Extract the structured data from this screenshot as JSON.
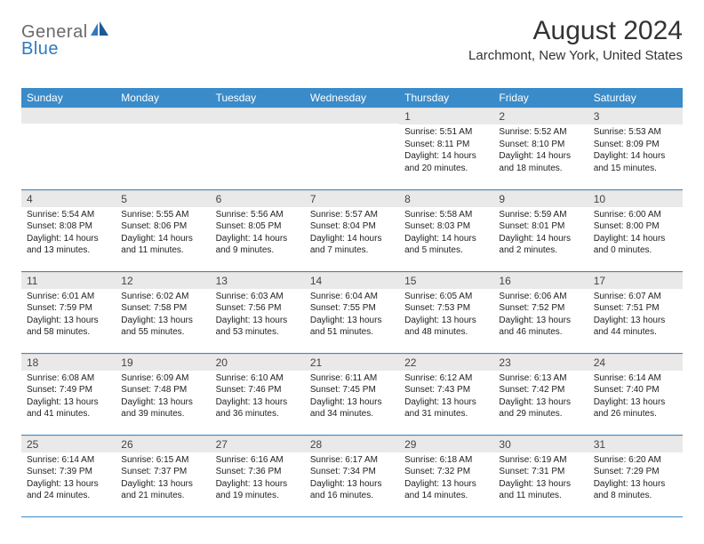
{
  "logo": {
    "text1": "General",
    "text2": "Blue"
  },
  "title": "August 2024",
  "location": "Larchmont, New York, United States",
  "colors": {
    "header_bg": "#3a8bc9",
    "header_fg": "#ffffff",
    "daynum_bg": "#e9e9e9",
    "row_border": "#3a8bc9",
    "logo_gray": "#6a6a6a",
    "logo_blue": "#2f7abf",
    "page_bg": "#ffffff"
  },
  "day_headers": [
    "Sunday",
    "Monday",
    "Tuesday",
    "Wednesday",
    "Thursday",
    "Friday",
    "Saturday"
  ],
  "weeks": [
    [
      {
        "n": "",
        "sr": "",
        "ss": "",
        "dl": ""
      },
      {
        "n": "",
        "sr": "",
        "ss": "",
        "dl": ""
      },
      {
        "n": "",
        "sr": "",
        "ss": "",
        "dl": ""
      },
      {
        "n": "",
        "sr": "",
        "ss": "",
        "dl": ""
      },
      {
        "n": "1",
        "sr": "Sunrise: 5:51 AM",
        "ss": "Sunset: 8:11 PM",
        "dl": "Daylight: 14 hours and 20 minutes."
      },
      {
        "n": "2",
        "sr": "Sunrise: 5:52 AM",
        "ss": "Sunset: 8:10 PM",
        "dl": "Daylight: 14 hours and 18 minutes."
      },
      {
        "n": "3",
        "sr": "Sunrise: 5:53 AM",
        "ss": "Sunset: 8:09 PM",
        "dl": "Daylight: 14 hours and 15 minutes."
      }
    ],
    [
      {
        "n": "4",
        "sr": "Sunrise: 5:54 AM",
        "ss": "Sunset: 8:08 PM",
        "dl": "Daylight: 14 hours and 13 minutes."
      },
      {
        "n": "5",
        "sr": "Sunrise: 5:55 AM",
        "ss": "Sunset: 8:06 PM",
        "dl": "Daylight: 14 hours and 11 minutes."
      },
      {
        "n": "6",
        "sr": "Sunrise: 5:56 AM",
        "ss": "Sunset: 8:05 PM",
        "dl": "Daylight: 14 hours and 9 minutes."
      },
      {
        "n": "7",
        "sr": "Sunrise: 5:57 AM",
        "ss": "Sunset: 8:04 PM",
        "dl": "Daylight: 14 hours and 7 minutes."
      },
      {
        "n": "8",
        "sr": "Sunrise: 5:58 AM",
        "ss": "Sunset: 8:03 PM",
        "dl": "Daylight: 14 hours and 5 minutes."
      },
      {
        "n": "9",
        "sr": "Sunrise: 5:59 AM",
        "ss": "Sunset: 8:01 PM",
        "dl": "Daylight: 14 hours and 2 minutes."
      },
      {
        "n": "10",
        "sr": "Sunrise: 6:00 AM",
        "ss": "Sunset: 8:00 PM",
        "dl": "Daylight: 14 hours and 0 minutes."
      }
    ],
    [
      {
        "n": "11",
        "sr": "Sunrise: 6:01 AM",
        "ss": "Sunset: 7:59 PM",
        "dl": "Daylight: 13 hours and 58 minutes."
      },
      {
        "n": "12",
        "sr": "Sunrise: 6:02 AM",
        "ss": "Sunset: 7:58 PM",
        "dl": "Daylight: 13 hours and 55 minutes."
      },
      {
        "n": "13",
        "sr": "Sunrise: 6:03 AM",
        "ss": "Sunset: 7:56 PM",
        "dl": "Daylight: 13 hours and 53 minutes."
      },
      {
        "n": "14",
        "sr": "Sunrise: 6:04 AM",
        "ss": "Sunset: 7:55 PM",
        "dl": "Daylight: 13 hours and 51 minutes."
      },
      {
        "n": "15",
        "sr": "Sunrise: 6:05 AM",
        "ss": "Sunset: 7:53 PM",
        "dl": "Daylight: 13 hours and 48 minutes."
      },
      {
        "n": "16",
        "sr": "Sunrise: 6:06 AM",
        "ss": "Sunset: 7:52 PM",
        "dl": "Daylight: 13 hours and 46 minutes."
      },
      {
        "n": "17",
        "sr": "Sunrise: 6:07 AM",
        "ss": "Sunset: 7:51 PM",
        "dl": "Daylight: 13 hours and 44 minutes."
      }
    ],
    [
      {
        "n": "18",
        "sr": "Sunrise: 6:08 AM",
        "ss": "Sunset: 7:49 PM",
        "dl": "Daylight: 13 hours and 41 minutes."
      },
      {
        "n": "19",
        "sr": "Sunrise: 6:09 AM",
        "ss": "Sunset: 7:48 PM",
        "dl": "Daylight: 13 hours and 39 minutes."
      },
      {
        "n": "20",
        "sr": "Sunrise: 6:10 AM",
        "ss": "Sunset: 7:46 PM",
        "dl": "Daylight: 13 hours and 36 minutes."
      },
      {
        "n": "21",
        "sr": "Sunrise: 6:11 AM",
        "ss": "Sunset: 7:45 PM",
        "dl": "Daylight: 13 hours and 34 minutes."
      },
      {
        "n": "22",
        "sr": "Sunrise: 6:12 AM",
        "ss": "Sunset: 7:43 PM",
        "dl": "Daylight: 13 hours and 31 minutes."
      },
      {
        "n": "23",
        "sr": "Sunrise: 6:13 AM",
        "ss": "Sunset: 7:42 PM",
        "dl": "Daylight: 13 hours and 29 minutes."
      },
      {
        "n": "24",
        "sr": "Sunrise: 6:14 AM",
        "ss": "Sunset: 7:40 PM",
        "dl": "Daylight: 13 hours and 26 minutes."
      }
    ],
    [
      {
        "n": "25",
        "sr": "Sunrise: 6:14 AM",
        "ss": "Sunset: 7:39 PM",
        "dl": "Daylight: 13 hours and 24 minutes."
      },
      {
        "n": "26",
        "sr": "Sunrise: 6:15 AM",
        "ss": "Sunset: 7:37 PM",
        "dl": "Daylight: 13 hours and 21 minutes."
      },
      {
        "n": "27",
        "sr": "Sunrise: 6:16 AM",
        "ss": "Sunset: 7:36 PM",
        "dl": "Daylight: 13 hours and 19 minutes."
      },
      {
        "n": "28",
        "sr": "Sunrise: 6:17 AM",
        "ss": "Sunset: 7:34 PM",
        "dl": "Daylight: 13 hours and 16 minutes."
      },
      {
        "n": "29",
        "sr": "Sunrise: 6:18 AM",
        "ss": "Sunset: 7:32 PM",
        "dl": "Daylight: 13 hours and 14 minutes."
      },
      {
        "n": "30",
        "sr": "Sunrise: 6:19 AM",
        "ss": "Sunset: 7:31 PM",
        "dl": "Daylight: 13 hours and 11 minutes."
      },
      {
        "n": "31",
        "sr": "Sunrise: 6:20 AM",
        "ss": "Sunset: 7:29 PM",
        "dl": "Daylight: 13 hours and 8 minutes."
      }
    ]
  ]
}
